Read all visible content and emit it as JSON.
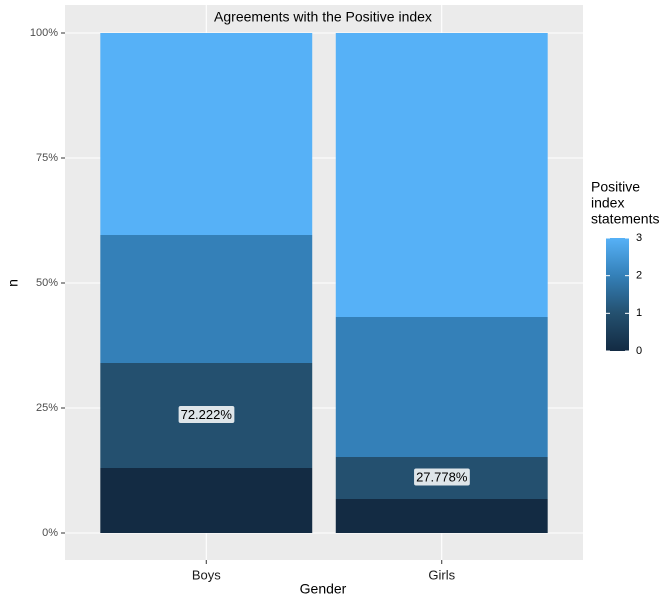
{
  "chart_data": {
    "type": "stacked_bar",
    "title": "Agreements with the Positive index",
    "x_label": "Gender",
    "y_label": "n",
    "categories": [
      "Boys",
      "Girls"
    ],
    "series": [
      {
        "name": 0,
        "color": "#132b43",
        "values": [
          13,
          6.8
        ]
      },
      {
        "name": 1,
        "color": "#24506f",
        "values": [
          21,
          8.4
        ]
      },
      {
        "name": 2,
        "color": "#3480b8",
        "values": [
          25.6,
          28
        ]
      },
      {
        "name": 3,
        "color": "#56b1f7",
        "values": [
          40.4,
          56.8
        ]
      }
    ],
    "ylim": [
      0,
      100
    ],
    "yticks": [
      {
        "value": 0,
        "label": "0%"
      },
      {
        "value": 25,
        "label": "25%"
      },
      {
        "value": 50,
        "label": "50%"
      },
      {
        "value": 75,
        "label": "75%"
      },
      {
        "value": 100,
        "label": "100%"
      }
    ],
    "grid": true,
    "legend": {
      "title": [
        "Positive",
        "index",
        "statements"
      ],
      "position": "right"
    },
    "annotations": [
      {
        "text": "72.222%",
        "category": 0,
        "series": 1
      },
      {
        "text": "27.778%",
        "category": 1,
        "series": 1
      }
    ]
  }
}
